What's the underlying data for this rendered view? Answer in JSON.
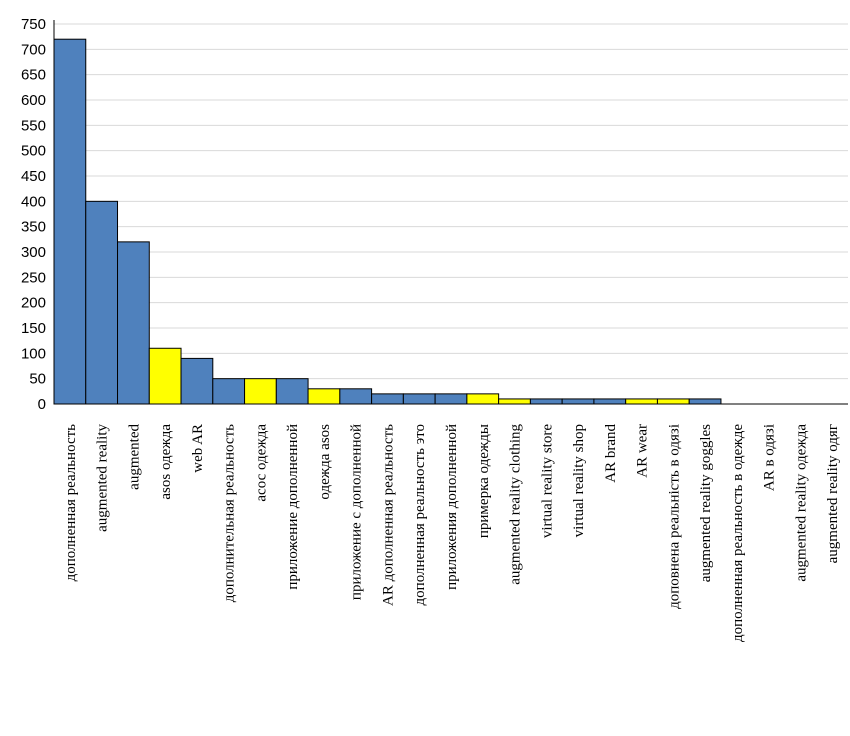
{
  "chart_data": {
    "type": "bar",
    "title": "",
    "xlabel": "",
    "ylabel": "",
    "ylim": [
      0,
      750
    ],
    "yticks": [
      0,
      50,
      100,
      150,
      200,
      250,
      300,
      350,
      400,
      450,
      500,
      550,
      600,
      650,
      700,
      750
    ],
    "grid": true,
    "legend": "none",
    "colors": {
      "default": "#4f81bd",
      "highlight": "#ffff00",
      "edge": "#000000",
      "grid": "#d9d9d9"
    },
    "categories": [
      "дополненная реальность",
      "augmented reality",
      "augmented",
      "asos одежда",
      "web AR",
      "дополнительная реальность",
      "асос одежда",
      "приложение дополненной",
      "одежда asos",
      "приложение с дополненной",
      "AR дополненная реальность",
      "дополненная реальность это",
      "приложения дополненной",
      "примерка одежды",
      "augmented reality clothing",
      "virtual reality store",
      "virtual reality shop",
      "AR brand",
      "AR wear",
      "доповнена реальність в одязі",
      "augmented reality goggles",
      "дополненная реальность в одежде",
      "AR в одязі",
      "augmented reality одежда",
      "augmented reality одяг"
    ],
    "values": [
      720,
      400,
      320,
      110,
      90,
      50,
      50,
      50,
      30,
      30,
      20,
      20,
      20,
      20,
      10,
      10,
      10,
      10,
      10,
      10,
      10,
      0,
      0,
      0,
      0
    ],
    "bar_colors": [
      "#4f81bd",
      "#4f81bd",
      "#4f81bd",
      "#ffff00",
      "#4f81bd",
      "#4f81bd",
      "#ffff00",
      "#4f81bd",
      "#ffff00",
      "#4f81bd",
      "#4f81bd",
      "#4f81bd",
      "#4f81bd",
      "#ffff00",
      "#ffff00",
      "#4f81bd",
      "#4f81bd",
      "#4f81bd",
      "#ffff00",
      "#ffff00",
      "#4f81bd",
      "#4f81bd",
      "#4f81bd",
      "#4f81bd",
      "#4f81bd"
    ]
  }
}
